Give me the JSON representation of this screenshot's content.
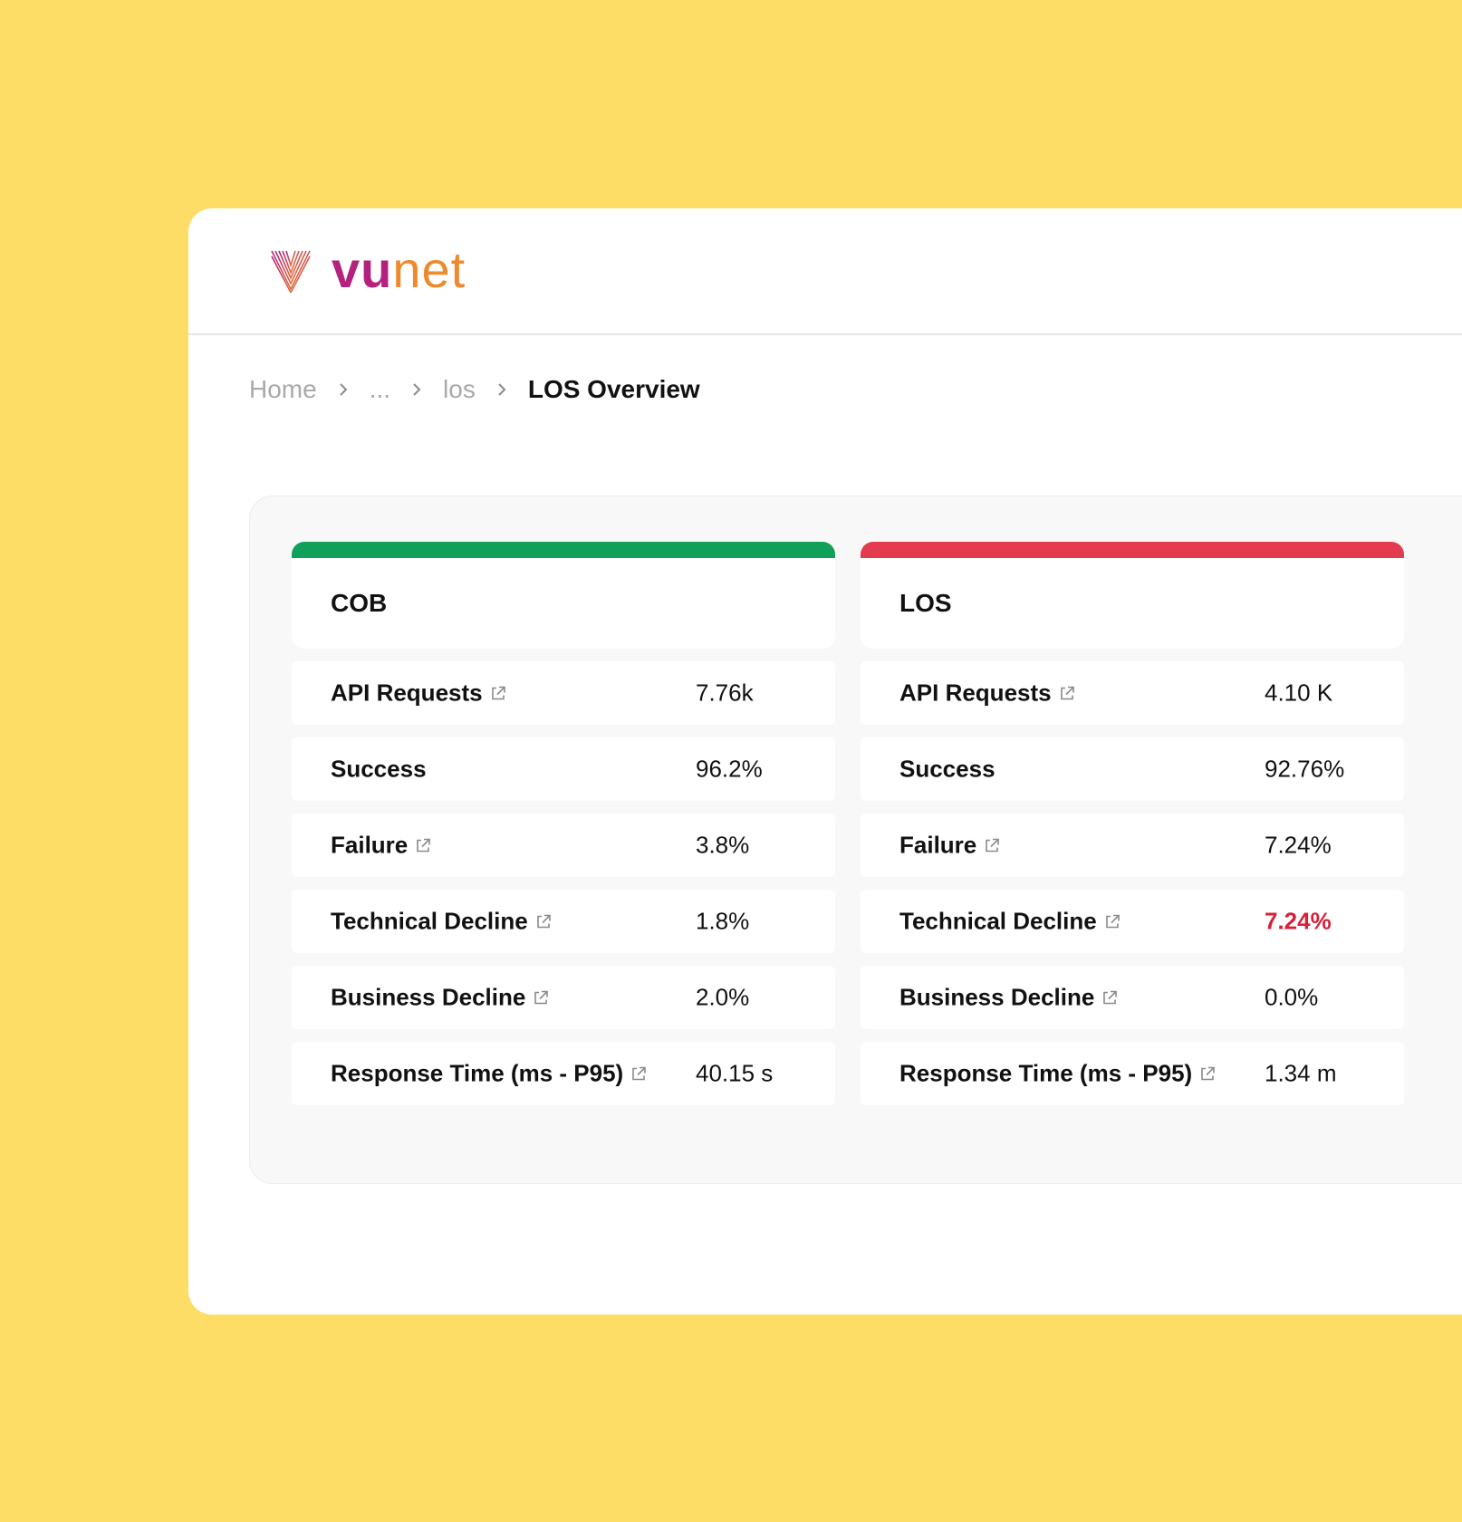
{
  "brand": {
    "name_part1": "vu",
    "name_part2": "net",
    "color_primary": "#B3237D",
    "color_secondary": "#EE8A2E"
  },
  "breadcrumb": {
    "items": [
      "Home",
      "...",
      "los"
    ],
    "current": "LOS Overview"
  },
  "cards": [
    {
      "title": "COB",
      "status_color": "#10A05A",
      "metrics": [
        {
          "label": "API Requests",
          "value": "7.76k",
          "link": true
        },
        {
          "label": "Success",
          "value": "96.2%",
          "link": false
        },
        {
          "label": "Failure",
          "value": "3.8%",
          "link": true
        },
        {
          "label": "Technical Decline",
          "value": "1.8%",
          "link": true
        },
        {
          "label": "Business Decline",
          "value": "2.0%",
          "link": true
        },
        {
          "label": "Response Time (ms - P95)",
          "value": "40.15 s",
          "link": true
        }
      ]
    },
    {
      "title": "LOS",
      "status_color": "#E43B4E",
      "metrics": [
        {
          "label": "API Requests",
          "value": "4.10 K",
          "link": true
        },
        {
          "label": "Success",
          "value": "92.76%",
          "link": false
        },
        {
          "label": "Failure",
          "value": "7.24%",
          "link": true
        },
        {
          "label": "Technical Decline",
          "value": "7.24%",
          "link": true,
          "alert": true,
          "alert_color": "#D6213A"
        },
        {
          "label": "Business Decline",
          "value": "0.0%",
          "link": true
        },
        {
          "label": "Response Time (ms - P95)",
          "value": "1.34 m",
          "link": true
        }
      ]
    }
  ],
  "icons": {
    "external_link": "external-link-icon",
    "chevron": "chevron-right-icon",
    "logo": "vunet-logo-icon"
  }
}
